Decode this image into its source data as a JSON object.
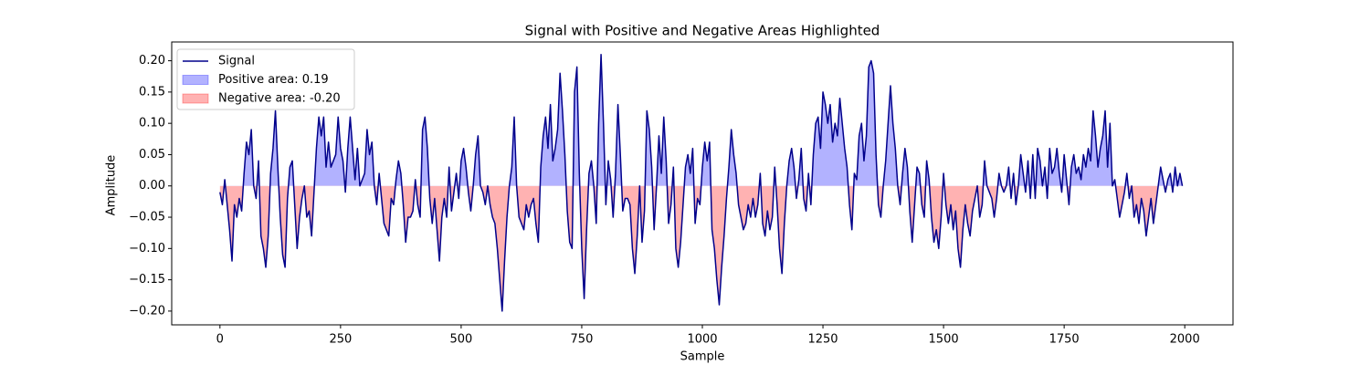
{
  "chart_data": {
    "type": "line",
    "title": "Signal with Positive and Negative Areas Highlighted",
    "xlabel": "Sample",
    "ylabel": "Amplitude",
    "xlim": [
      -100,
      2100
    ],
    "ylim": [
      -0.222,
      0.23
    ],
    "xticks": [
      0,
      250,
      500,
      750,
      1000,
      1250,
      1500,
      1750,
      2000
    ],
    "yticks": [
      {
        "value": -0.2,
        "label": "−0.20"
      },
      {
        "value": -0.15,
        "label": "−0.15"
      },
      {
        "value": -0.1,
        "label": "−0.10"
      },
      {
        "value": -0.05,
        "label": "−0.05"
      },
      {
        "value": 0,
        "label": "0.00"
      },
      {
        "value": 0.05,
        "label": "0.05"
      },
      {
        "value": 0.1,
        "label": "0.10"
      },
      {
        "value": 0.15,
        "label": "0.15"
      },
      {
        "value": 0.2,
        "label": "0.20"
      }
    ],
    "grid": false,
    "legend": "upper left",
    "x": [
      0,
      5,
      10,
      15,
      20,
      25,
      30,
      35,
      40,
      45,
      50,
      55,
      60,
      65,
      70,
      75,
      80,
      85,
      90,
      95,
      100,
      105,
      110,
      115,
      120,
      125,
      130,
      135,
      140,
      145,
      150,
      155,
      160,
      165,
      170,
      175,
      180,
      185,
      190,
      195,
      200,
      205,
      210,
      215,
      220,
      225,
      230,
      235,
      240,
      245,
      250,
      255,
      260,
      265,
      270,
      275,
      280,
      285,
      290,
      295,
      300,
      305,
      310,
      315,
      320,
      325,
      330,
      335,
      340,
      345,
      350,
      355,
      360,
      365,
      370,
      375,
      380,
      385,
      390,
      395,
      400,
      405,
      410,
      415,
      420,
      425,
      430,
      435,
      440,
      445,
      450,
      455,
      460,
      465,
      470,
      475,
      480,
      485,
      490,
      495,
      500,
      505,
      510,
      515,
      520,
      525,
      530,
      535,
      540,
      545,
      550,
      555,
      560,
      565,
      570,
      575,
      580,
      585,
      590,
      595,
      600,
      605,
      610,
      615,
      620,
      625,
      630,
      635,
      640,
      645,
      650,
      655,
      660,
      665,
      670,
      675,
      680,
      685,
      690,
      695,
      700,
      705,
      710,
      715,
      720,
      725,
      730,
      735,
      740,
      745,
      750,
      755,
      760,
      765,
      770,
      775,
      780,
      785,
      790,
      795,
      800,
      805,
      810,
      815,
      820,
      825,
      830,
      835,
      840,
      845,
      850,
      855,
      860,
      865,
      870,
      875,
      880,
      885,
      890,
      895,
      900,
      905,
      910,
      915,
      920,
      925,
      930,
      935,
      940,
      945,
      950,
      955,
      960,
      965,
      970,
      975,
      980,
      985,
      990,
      995,
      1000,
      1005,
      1010,
      1015,
      1020,
      1025,
      1030,
      1035,
      1040,
      1045,
      1050,
      1055,
      1060,
      1065,
      1070,
      1075,
      1080,
      1085,
      1090,
      1095,
      1100,
      1105,
      1110,
      1115,
      1120,
      1125,
      1130,
      1135,
      1140,
      1145,
      1150,
      1155,
      1160,
      1165,
      1170,
      1175,
      1180,
      1185,
      1190,
      1195,
      1200,
      1205,
      1210,
      1215,
      1220,
      1225,
      1230,
      1235,
      1240,
      1245,
      1250,
      1255,
      1260,
      1265,
      1270,
      1275,
      1280,
      1285,
      1290,
      1295,
      1300,
      1305,
      1310,
      1315,
      1320,
      1325,
      1330,
      1335,
      1340,
      1345,
      1350,
      1355,
      1360,
      1365,
      1370,
      1375,
      1380,
      1385,
      1390,
      1395,
      1400,
      1405,
      1410,
      1415,
      1420,
      1425,
      1430,
      1435,
      1440,
      1445,
      1450,
      1455,
      1460,
      1465,
      1470,
      1475,
      1480,
      1485,
      1490,
      1495,
      1500,
      1505,
      1510,
      1515,
      1520,
      1525,
      1530,
      1535,
      1540,
      1545,
      1550,
      1555,
      1560,
      1565,
      1570,
      1575,
      1580,
      1585,
      1590,
      1595,
      1600,
      1605,
      1610,
      1615,
      1620,
      1625,
      1630,
      1635,
      1640,
      1645,
      1650,
      1655,
      1660,
      1665,
      1670,
      1675,
      1680,
      1685,
      1690,
      1695,
      1700,
      1705,
      1710,
      1715,
      1720,
      1725,
      1730,
      1735,
      1740,
      1745,
      1750,
      1755,
      1760,
      1765,
      1770,
      1775,
      1780,
      1785,
      1790,
      1795,
      1800,
      1805,
      1810,
      1815,
      1820,
      1825,
      1830,
      1835,
      1840,
      1845,
      1850,
      1855,
      1860,
      1865,
      1870,
      1875,
      1880,
      1885,
      1890,
      1895,
      1900,
      1905,
      1910,
      1915,
      1920,
      1925,
      1930,
      1935,
      1940,
      1945,
      1950,
      1955,
      1960,
      1965,
      1970,
      1975,
      1980,
      1985,
      1990,
      1995
    ],
    "series": [
      {
        "name": "Signal",
        "color": "#00008b",
        "values": [
          -0.01,
          -0.03,
          0.01,
          -0.03,
          -0.07,
          -0.12,
          -0.03,
          -0.05,
          -0.02,
          -0.04,
          0.02,
          0.07,
          0.05,
          0.09,
          0.0,
          -0.02,
          0.04,
          -0.08,
          -0.1,
          -0.13,
          -0.08,
          0.02,
          0.06,
          0.12,
          0.03,
          -0.05,
          -0.11,
          -0.13,
          -0.02,
          0.03,
          0.04,
          -0.03,
          -0.1,
          -0.05,
          -0.02,
          0.0,
          -0.05,
          -0.04,
          -0.08,
          -0.01,
          0.06,
          0.11,
          0.08,
          0.11,
          0.03,
          0.07,
          0.03,
          0.04,
          0.05,
          0.11,
          0.06,
          0.04,
          -0.01,
          0.06,
          0.11,
          0.06,
          0.01,
          0.06,
          0.0,
          0.01,
          0.02,
          0.09,
          0.05,
          0.07,
          0.0,
          -0.03,
          0.02,
          -0.02,
          -0.06,
          -0.07,
          -0.08,
          -0.02,
          -0.03,
          0.01,
          0.04,
          0.02,
          -0.03,
          -0.09,
          -0.05,
          -0.05,
          -0.04,
          0.01,
          -0.03,
          -0.05,
          0.09,
          0.11,
          0.06,
          -0.02,
          -0.06,
          -0.02,
          -0.07,
          -0.12,
          -0.05,
          -0.02,
          -0.05,
          0.03,
          -0.04,
          -0.01,
          0.02,
          -0.02,
          0.04,
          0.06,
          0.03,
          -0.01,
          -0.04,
          0.0,
          0.05,
          0.08,
          0.0,
          -0.01,
          -0.03,
          0.0,
          -0.03,
          -0.05,
          -0.06,
          -0.1,
          -0.15,
          -0.2,
          -0.12,
          -0.05,
          0.0,
          0.03,
          0.11,
          0.0,
          -0.05,
          -0.06,
          -0.07,
          -0.03,
          -0.05,
          -0.03,
          -0.02,
          -0.06,
          -0.09,
          0.03,
          0.08,
          0.11,
          0.06,
          0.13,
          0.04,
          0.06,
          0.09,
          0.18,
          0.12,
          0.05,
          -0.04,
          -0.09,
          -0.1,
          0.15,
          0.19,
          0.02,
          -0.1,
          -0.18,
          -0.07,
          0.02,
          0.04,
          0.0,
          -0.06,
          0.1,
          0.21,
          0.1,
          -0.03,
          0.04,
          0.01,
          -0.05,
          0.02,
          0.13,
          0.05,
          -0.04,
          -0.02,
          -0.02,
          -0.03,
          -0.1,
          -0.14,
          -0.08,
          0.0,
          -0.09,
          -0.04,
          0.12,
          0.09,
          0.03,
          -0.07,
          0.0,
          0.08,
          0.02,
          0.11,
          0.04,
          -0.06,
          -0.03,
          0.03,
          -0.1,
          -0.13,
          -0.09,
          -0.03,
          0.03,
          0.05,
          0.02,
          0.06,
          -0.06,
          -0.02,
          -0.03,
          0.03,
          0.07,
          0.04,
          0.07,
          -0.07,
          -0.1,
          -0.15,
          -0.19,
          -0.13,
          -0.08,
          -0.02,
          0.03,
          0.09,
          0.05,
          0.02,
          -0.03,
          -0.05,
          -0.07,
          -0.06,
          -0.03,
          -0.05,
          -0.02,
          -0.05,
          -0.03,
          0.02,
          -0.06,
          -0.08,
          -0.04,
          -0.07,
          -0.05,
          0.03,
          -0.03,
          -0.1,
          -0.14,
          -0.06,
          0.0,
          0.04,
          0.06,
          0.03,
          -0.02,
          0.01,
          0.06,
          -0.02,
          -0.04,
          0.02,
          -0.03,
          0.05,
          0.1,
          0.11,
          0.06,
          0.15,
          0.13,
          0.1,
          0.13,
          0.07,
          0.1,
          0.08,
          0.14,
          0.1,
          0.06,
          0.03,
          -0.03,
          -0.07,
          0.02,
          0.01,
          0.08,
          0.1,
          0.04,
          0.08,
          0.19,
          0.2,
          0.18,
          0.05,
          -0.03,
          -0.05,
          0.0,
          0.04,
          0.1,
          0.16,
          0.1,
          0.06,
          0.0,
          -0.03,
          0.02,
          0.06,
          0.03,
          -0.04,
          -0.09,
          -0.03,
          0.03,
          0.02,
          -0.03,
          -0.05,
          0.04,
          0.01,
          -0.05,
          -0.09,
          -0.07,
          -0.1,
          -0.05,
          0.02,
          -0.03,
          -0.06,
          -0.03,
          -0.07,
          -0.04,
          -0.1,
          -0.13,
          -0.07,
          -0.03,
          -0.06,
          -0.08,
          -0.04,
          -0.02,
          0.0,
          -0.05,
          -0.03,
          0.04,
          0.0,
          -0.01,
          -0.02,
          -0.05,
          -0.02,
          0.02,
          0.0,
          -0.01,
          0.0,
          0.03,
          -0.02,
          0.02,
          -0.03,
          0.0,
          0.05,
          0.02,
          -0.01,
          0.04,
          -0.02,
          0.05,
          -0.02,
          0.06,
          0.04,
          0.0,
          0.03,
          -0.02,
          0.06,
          0.02,
          0.03,
          0.06,
          0.02,
          -0.01,
          0.05,
          0.01,
          -0.03,
          0.03,
          0.05,
          0.02,
          0.03,
          0.01,
          0.05,
          0.03,
          0.06,
          0.04,
          0.12,
          0.08,
          0.03,
          0.06,
          0.08,
          0.12,
          0.03,
          0.1,
          0.0,
          0.01,
          -0.02,
          -0.05,
          -0.03,
          -0.01,
          0.02,
          -0.02,
          0.0,
          -0.05,
          -0.03,
          -0.06,
          -0.02,
          -0.04,
          -0.08,
          -0.05,
          -0.02,
          -0.06,
          -0.03,
          0.0,
          0.03,
          0.01,
          -0.01,
          0.01,
          0.02,
          -0.01,
          0.03,
          0.0,
          0.02,
          0.0
        ]
      }
    ],
    "areas": [
      {
        "name": "Positive area: 0.19",
        "color": "#0000ff",
        "alpha": 0.3,
        "where": "above"
      },
      {
        "name": "Negative area: -0.20",
        "color": "#ff0000",
        "alpha": 0.3,
        "where": "below"
      }
    ]
  }
}
